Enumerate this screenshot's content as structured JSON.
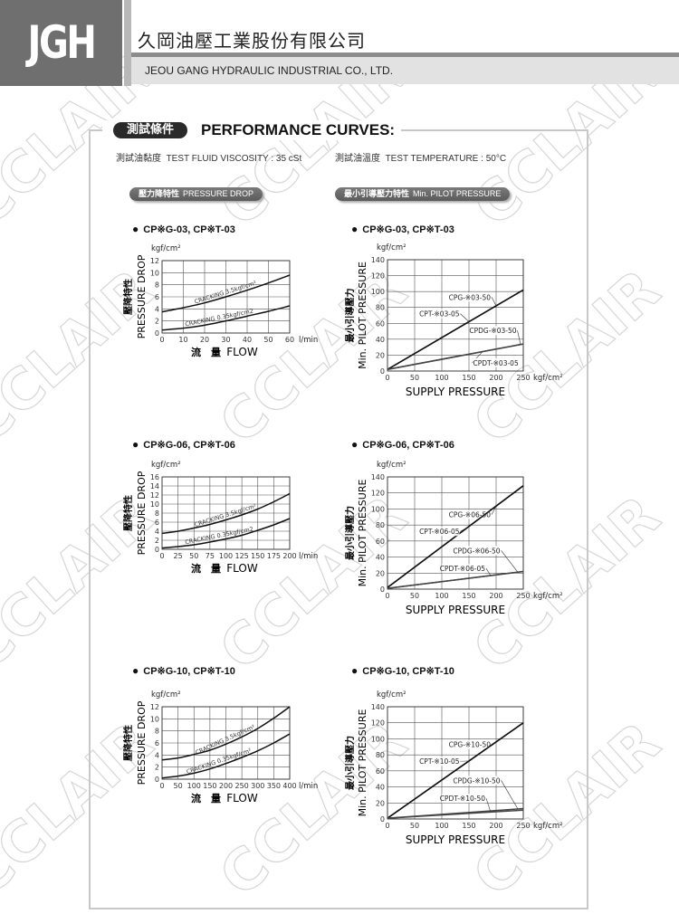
{
  "header": {
    "logo": "JGH",
    "company_cn": "久岡油壓工業股份有限公司",
    "company_en": "JEOU GANG HYDRAULIC INDUSTRIAL CO., LTD."
  },
  "watermark": "CCLAIR",
  "section": {
    "title_cn": "測試條件",
    "title_en": "PERFORMANCE CURVES:",
    "viscosity_cn": "測試油黏度",
    "viscosity": "TEST FLUID VISCOSITY : 35 cSt",
    "temperature_cn": "測試油溫度",
    "temperature": "TEST TEMPERATURE : 50°C",
    "pressure_drop_cn": "壓力降特性",
    "pressure_drop": "PRESSURE DROP",
    "pilot_cn": "最小引導壓力特性",
    "pilot": "Min. PILOT PRESSURE"
  },
  "colors": {
    "logo_bg": "#6f6f6f",
    "pill": "#2a2a2a",
    "curve": "#111111",
    "grid": "#555555"
  },
  "chart_data": [
    {
      "type": "line",
      "title": "CP※G-03, CP※T-03",
      "ylabel_cn": "壓降特性",
      "ylabel": "PRESSURE DROP",
      "yunit": "kgf/cm²",
      "xlabel_cn": "流　量",
      "xlabel": "FLOW",
      "xunit": "l/min",
      "xlim": [
        0,
        60
      ],
      "ylim": [
        0,
        12
      ],
      "xticks": [
        0,
        10,
        20,
        30,
        40,
        50,
        60
      ],
      "yticks": [
        0,
        2,
        4,
        6,
        8,
        10,
        12
      ],
      "grid": true,
      "x": [
        0,
        10,
        20,
        30,
        40,
        50,
        60
      ],
      "series": [
        {
          "name": "CRACKING 3.5kgf/cm²",
          "values": [
            3.5,
            4.2,
            5.0,
            6.0,
            7.1,
            8.3,
            9.6
          ]
        },
        {
          "name": "CRACKING 0.35kgf/cm2",
          "values": [
            0.5,
            0.8,
            1.3,
            2.0,
            2.8,
            3.6,
            4.5
          ]
        }
      ]
    },
    {
      "type": "line",
      "title": "CP※G-03, CP※T-03",
      "ylabel_cn": "最小引導壓力",
      "ylabel": "Min. PILOT PRESSURE",
      "yunit": "kgf/cm²",
      "xlabel": "SUPPLY PRESSURE",
      "xunit": "kgf/cm²",
      "xlim": [
        0,
        250
      ],
      "ylim": [
        0,
        140
      ],
      "xticks": [
        0,
        50,
        100,
        150,
        200,
        250
      ],
      "yticks": [
        0,
        20,
        40,
        60,
        80,
        100,
        120,
        140
      ],
      "grid": true,
      "x": [
        0,
        250
      ],
      "series": [
        {
          "name": "CPG-※03-50",
          "values": [
            2,
            102
          ]
        },
        {
          "name": "CPT-※03-05",
          "values": [
            2,
            102
          ]
        },
        {
          "name": "CPDG-※03-50",
          "values": [
            2,
            34
          ]
        },
        {
          "name": "CPDT-※03-05",
          "values": [
            2,
            34
          ]
        }
      ]
    },
    {
      "type": "line",
      "title": "CP※G-06, CP※T-06",
      "ylabel_cn": "壓降特性",
      "ylabel": "PRESSURE DROP",
      "yunit": "kgf/cm²",
      "xlabel_cn": "流　量",
      "xlabel": "FLOW",
      "xunit": "l/min",
      "xlim": [
        0,
        200
      ],
      "ylim": [
        0,
        16
      ],
      "xticks": [
        0,
        25,
        50,
        75,
        100,
        125,
        150,
        175,
        200
      ],
      "yticks": [
        0,
        2,
        4,
        6,
        8,
        10,
        12,
        14,
        16
      ],
      "grid": true,
      "x": [
        0,
        25,
        50,
        75,
        100,
        125,
        150,
        175,
        200
      ],
      "series": [
        {
          "name": "CRACKING 3.5kgf/cm²",
          "values": [
            3.5,
            4.0,
            4.7,
            5.5,
            6.5,
            7.6,
            8.9,
            10.5,
            12.3
          ]
        },
        {
          "name": "CRACKING 0.35kgf/cm2",
          "values": [
            0.3,
            0.6,
            1.0,
            1.6,
            2.3,
            3.1,
            4.2,
            5.4,
            6.8
          ]
        }
      ]
    },
    {
      "type": "line",
      "title": "CP※G-06, CP※T-06",
      "ylabel_cn": "最小引導壓力",
      "ylabel": "Min. PILOT PRESSURE",
      "yunit": "kgf/cm²",
      "xlabel": "SUPPLY PRESSURE",
      "xunit": "kgf/cm²",
      "xlim": [
        0,
        250
      ],
      "ylim": [
        0,
        140
      ],
      "xticks": [
        0,
        50,
        100,
        150,
        200,
        250
      ],
      "yticks": [
        0,
        20,
        40,
        60,
        80,
        100,
        120,
        140
      ],
      "grid": true,
      "x": [
        0,
        250
      ],
      "series": [
        {
          "name": "CPG-※06-50",
          "values": [
            2,
            129
          ]
        },
        {
          "name": "CPT-※06-05",
          "values": [
            2,
            129
          ]
        },
        {
          "name": "CPDG-※06-50",
          "values": [
            1,
            22
          ]
        },
        {
          "name": "CPDT-※06-05",
          "values": [
            1,
            22
          ]
        }
      ]
    },
    {
      "type": "line",
      "title": "CP※G-10, CP※T-10",
      "ylabel_cn": "壓降特性",
      "ylabel": "PRESSURE DROP",
      "yunit": "kgf/cm²",
      "xlabel_cn": "流　量",
      "xlabel": "FLOW",
      "xunit": "l/min",
      "xlim": [
        0,
        400
      ],
      "ylim": [
        0,
        12
      ],
      "xticks": [
        0,
        50,
        100,
        150,
        200,
        250,
        300,
        350,
        400
      ],
      "yticks": [
        0,
        2,
        4,
        6,
        8,
        10,
        12
      ],
      "grid": true,
      "x": [
        0,
        50,
        100,
        150,
        200,
        250,
        300,
        350,
        400
      ],
      "series": [
        {
          "name": "CRACKING 3.5kgf/cm²",
          "values": [
            3.2,
            3.5,
            4.1,
            4.8,
            5.8,
            7.0,
            8.4,
            10.1,
            12.0
          ]
        },
        {
          "name": "CRACKING 0.35kgf/cm²",
          "values": [
            0.2,
            0.5,
            1.0,
            1.7,
            2.6,
            3.6,
            4.7,
            6.0,
            7.5
          ]
        }
      ]
    },
    {
      "type": "line",
      "title": "CP※G-10, CP※T-10",
      "ylabel_cn": "最小引導壓力",
      "ylabel": "Min. PILOT PRESSURE",
      "yunit": "kgf/cm²",
      "xlabel": "SUPPLY PRESSURE",
      "xunit": "kgf/cm²",
      "xlim": [
        0,
        250
      ],
      "ylim": [
        0,
        140
      ],
      "xticks": [
        0,
        50,
        100,
        150,
        200,
        250
      ],
      "yticks": [
        0,
        20,
        40,
        60,
        80,
        100,
        120,
        140
      ],
      "grid": true,
      "x": [
        0,
        250
      ],
      "series": [
        {
          "name": "CPG-※10-50",
          "values": [
            1,
            120
          ]
        },
        {
          "name": "CPT-※10-05",
          "values": [
            1,
            120
          ]
        },
        {
          "name": "CPDG-※10-50",
          "values": [
            1,
            13
          ]
        },
        {
          "name": "CPDT-※10-50",
          "values": [
            1,
            11
          ]
        }
      ]
    }
  ]
}
